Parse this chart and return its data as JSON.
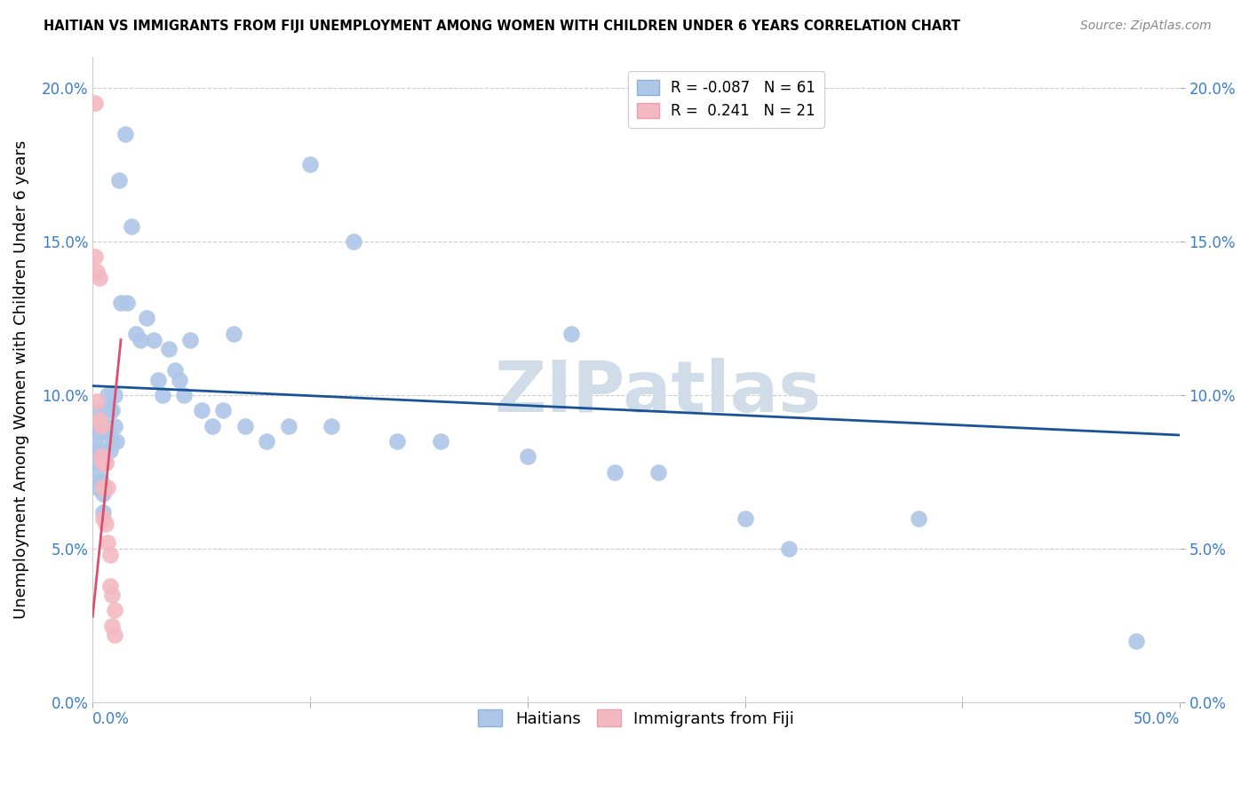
{
  "title": "HAITIAN VS IMMIGRANTS FROM FIJI UNEMPLOYMENT AMONG WOMEN WITH CHILDREN UNDER 6 YEARS CORRELATION CHART",
  "source": "Source: ZipAtlas.com",
  "ylabel": "Unemployment Among Women with Children Under 6 years",
  "xlim": [
    0,
    0.5
  ],
  "ylim": [
    0,
    0.21
  ],
  "yticks": [
    0.0,
    0.05,
    0.1,
    0.15,
    0.2
  ],
  "ytick_labels": [
    "0.0%",
    "5.0%",
    "10.0%",
    "15.0%",
    "20.0%"
  ],
  "xtick_left_label": "0.0%",
  "xtick_right_label": "50.0%",
  "haitians_R": -0.087,
  "haitians_N": 61,
  "fiji_R": 0.241,
  "fiji_N": 21,
  "haitians_color": "#aec6e8",
  "fiji_color": "#f4b8c1",
  "trend_blue_color": "#1a5296",
  "trend_pink_color": "#d94f6e",
  "watermark_color": "#d0dce8",
  "haitians_x": [
    0.001,
    0.001,
    0.002,
    0.002,
    0.002,
    0.003,
    0.003,
    0.003,
    0.004,
    0.004,
    0.004,
    0.005,
    0.005,
    0.006,
    0.006,
    0.006,
    0.007,
    0.007,
    0.008,
    0.008,
    0.009,
    0.009,
    0.01,
    0.01,
    0.011,
    0.012,
    0.013,
    0.015,
    0.016,
    0.018,
    0.02,
    0.022,
    0.025,
    0.028,
    0.03,
    0.032,
    0.035,
    0.038,
    0.04,
    0.042,
    0.045,
    0.05,
    0.055,
    0.06,
    0.065,
    0.07,
    0.08,
    0.09,
    0.1,
    0.11,
    0.12,
    0.14,
    0.16,
    0.2,
    0.22,
    0.24,
    0.26,
    0.3,
    0.32,
    0.38,
    0.48
  ],
  "haitians_y": [
    0.09,
    0.085,
    0.082,
    0.075,
    0.07,
    0.095,
    0.09,
    0.078,
    0.088,
    0.082,
    0.072,
    0.068,
    0.062,
    0.095,
    0.09,
    0.078,
    0.1,
    0.088,
    0.095,
    0.082,
    0.095,
    0.085,
    0.1,
    0.09,
    0.085,
    0.17,
    0.13,
    0.185,
    0.13,
    0.155,
    0.12,
    0.118,
    0.125,
    0.118,
    0.105,
    0.1,
    0.115,
    0.108,
    0.105,
    0.1,
    0.118,
    0.095,
    0.09,
    0.095,
    0.12,
    0.09,
    0.085,
    0.09,
    0.175,
    0.09,
    0.15,
    0.085,
    0.085,
    0.08,
    0.12,
    0.075,
    0.075,
    0.06,
    0.05,
    0.06,
    0.02
  ],
  "fiji_x": [
    0.001,
    0.001,
    0.002,
    0.002,
    0.003,
    0.003,
    0.004,
    0.004,
    0.005,
    0.005,
    0.005,
    0.006,
    0.006,
    0.007,
    0.007,
    0.008,
    0.008,
    0.009,
    0.009,
    0.01,
    0.01
  ],
  "fiji_y": [
    0.195,
    0.145,
    0.14,
    0.098,
    0.138,
    0.092,
    0.09,
    0.08,
    0.078,
    0.07,
    0.06,
    0.078,
    0.058,
    0.07,
    0.052,
    0.048,
    0.038,
    0.035,
    0.025,
    0.03,
    0.022
  ],
  "blue_trend_x": [
    0.0,
    0.5
  ],
  "blue_trend_y": [
    0.103,
    0.087
  ],
  "pink_trend_x": [
    0.0,
    0.013
  ],
  "pink_trend_y": [
    0.028,
    0.118
  ]
}
